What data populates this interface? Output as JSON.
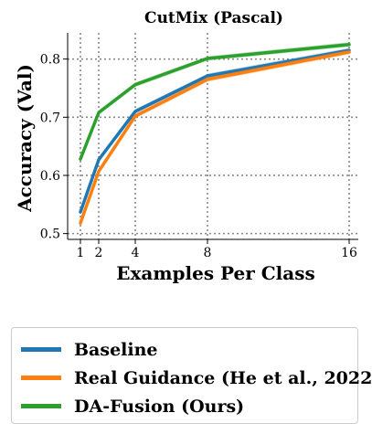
{
  "chart_data": {
    "type": "line",
    "title": "CutMix (Pascal)",
    "xlabel": "Examples Per Class",
    "ylabel": "Accuracy (Val)",
    "x": [
      1,
      2,
      4,
      8,
      16
    ],
    "xticks": [
      "1",
      "2",
      "4",
      "8",
      "16"
    ],
    "yticks": [
      "0.5",
      "0.6",
      "0.7",
      "0.8"
    ],
    "ylim": [
      0.49,
      0.845
    ],
    "grid": true,
    "legend_position": "bottom",
    "series": [
      {
        "name": "Baseline",
        "color": "#1f77b4",
        "values": [
          0.537,
          0.627,
          0.71,
          0.771,
          0.815
        ]
      },
      {
        "name": "Real Guidance (He et al., 2022)",
        "color": "#ff7f0e",
        "values": [
          0.518,
          0.607,
          0.702,
          0.765,
          0.812
        ]
      },
      {
        "name": "DA-Fusion (Ours)",
        "color": "#2ca02c",
        "values": [
          0.628,
          0.708,
          0.756,
          0.801,
          0.825
        ]
      }
    ]
  }
}
